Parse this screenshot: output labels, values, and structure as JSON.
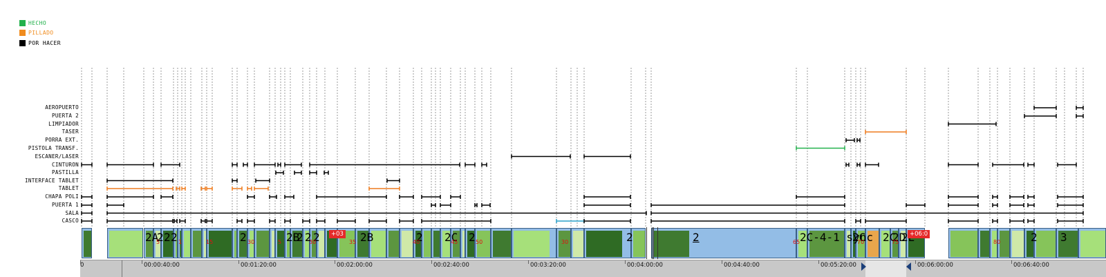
{
  "legend": [
    {
      "label": "HECHO",
      "color": "#22b14c"
    },
    {
      "label": "PILLADO",
      "color": "#f08c1e"
    },
    {
      "label": "POR HACER",
      "color": "#000000"
    }
  ],
  "rows": [
    "AEROPUERTO",
    "PUERTA 2",
    "LIMPIADOR",
    "TASER",
    "PORRA EXT.",
    "PISTOLA TRANSF.",
    "ESCANER/LASER",
    "CINTURON",
    "PASTILLA",
    "INTERFACE TABLET",
    "TABLET",
    "CHAPA POLI",
    "PUERTA 1",
    "SALA",
    "CASCO"
  ],
  "timeline": {
    "ticks": [
      "0",
      "00:00:40:00",
      "00:01:20:00",
      "00:02:00:00",
      "00:02:40:00",
      "00:03:20:00",
      "00:04:00:00",
      "00:04:40:00",
      "00:05:20:00",
      "00:06:00:00",
      "00:06:40:00"
    ],
    "clip_titles": [
      "2A",
      "2",
      "2",
      "2",
      "2",
      "2B",
      "2",
      "2",
      "2",
      "2B",
      "2",
      "2C",
      "2",
      "2",
      "2",
      "2C-4-1 sync",
      "2C",
      "2D",
      "2E",
      "2",
      "3",
      "2C"
    ],
    "badges": [
      "+03",
      "+06:0"
    ],
    "markers": [
      "5",
      "1",
      "15",
      "30",
      "5",
      "30",
      "35",
      "40",
      "45",
      "50",
      "30",
      "65",
      "70",
      "75",
      "80"
    ]
  }
}
